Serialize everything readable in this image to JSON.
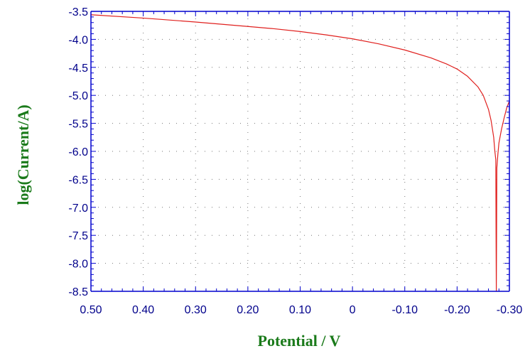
{
  "chart_data": {
    "type": "line",
    "title": "",
    "xlabel": "Potential / V",
    "ylabel": "log(Current/A)",
    "xlim": [
      0.5,
      -0.3
    ],
    "ylim": [
      -8.5,
      -3.5
    ],
    "x_ticks": [
      0.5,
      0.4,
      0.3,
      0.2,
      0.1,
      0,
      -0.1,
      -0.2,
      -0.3
    ],
    "x_tick_labels": [
      "0.50",
      "0.40",
      "0.30",
      "0.20",
      "0.10",
      "0",
      "-0.10",
      "-0.20",
      "-0.30"
    ],
    "y_ticks": [
      -3.5,
      -4.0,
      -4.5,
      -5.0,
      -5.5,
      -6.0,
      -6.5,
      -7.0,
      -7.5,
      -8.0,
      -8.5
    ],
    "y_tick_labels": [
      "-3.5",
      "-4.0",
      "-4.5",
      "-5.0",
      "-5.5",
      "-6.0",
      "-6.5",
      "-7.0",
      "-7.5",
      "-8.0",
      "-8.5"
    ],
    "grid": true,
    "grid_style": "dotted",
    "colors": {
      "line": "#e0201e",
      "axis": "#0000cd",
      "tick_text": "#00008b",
      "axis_title": "#1a7a1a",
      "grid": "#777777"
    },
    "series": [
      {
        "color": "#e0201e",
        "x": [
          0.5,
          0.4,
          0.3,
          0.2,
          0.15,
          0.1,
          0.05,
          0.0,
          -0.05,
          -0.1,
          -0.15,
          -0.18,
          -0.2,
          -0.22,
          -0.24,
          -0.25,
          -0.26,
          -0.265,
          -0.27,
          -0.272,
          -0.274,
          -0.2745,
          -0.275,
          -0.2755,
          -0.276,
          -0.278,
          -0.28,
          -0.285,
          -0.29,
          -0.295,
          -0.3
        ],
        "y": [
          -3.56,
          -3.62,
          -3.69,
          -3.77,
          -3.81,
          -3.86,
          -3.92,
          -3.99,
          -4.08,
          -4.19,
          -4.33,
          -4.44,
          -4.53,
          -4.66,
          -4.85,
          -5.0,
          -5.25,
          -5.45,
          -5.75,
          -5.98,
          -6.15,
          -7.5,
          -8.5,
          -7.5,
          -6.3,
          -6.05,
          -5.85,
          -5.6,
          -5.4,
          -5.22,
          -5.1
        ]
      }
    ]
  }
}
